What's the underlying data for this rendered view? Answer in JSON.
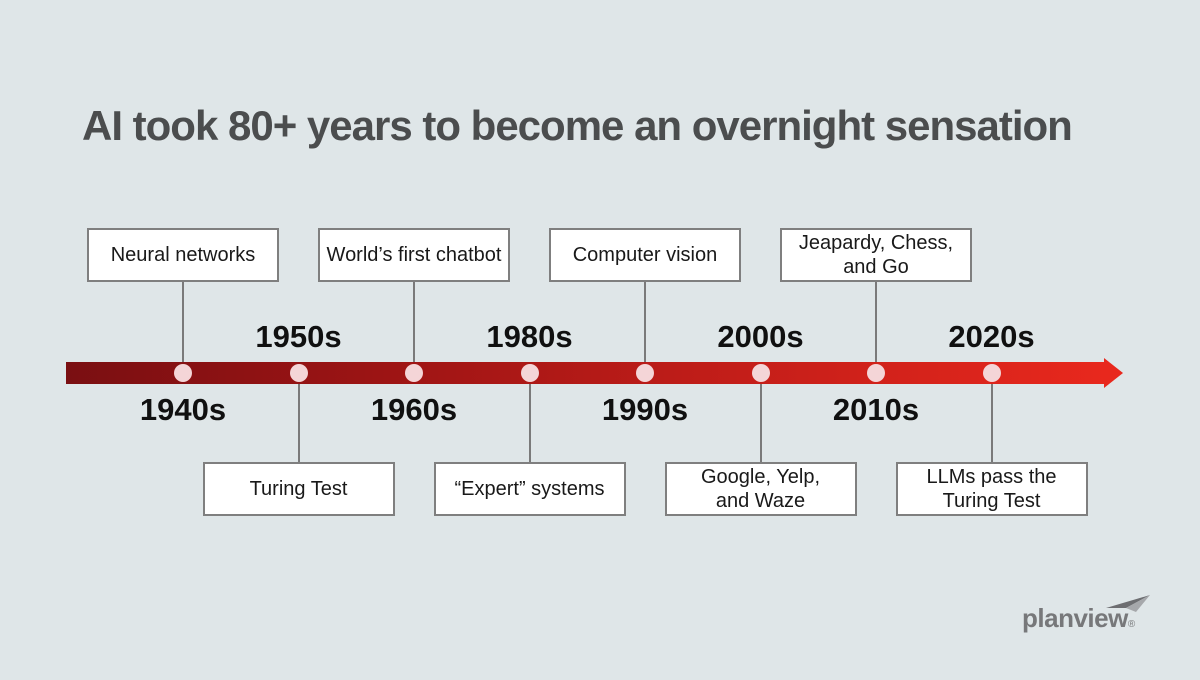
{
  "title": "AI took 80+ years to become an overnight sensation",
  "timeline": {
    "events": [
      {
        "decade": "1940s",
        "lines": [
          "Neural networks"
        ],
        "box_position": "above"
      },
      {
        "decade": "1950s",
        "lines": [
          "Turing Test"
        ],
        "box_position": "below"
      },
      {
        "decade": "1960s",
        "lines": [
          "World’s first chatbot"
        ],
        "box_position": "above"
      },
      {
        "decade": "1980s",
        "lines": [
          "“Expert” systems"
        ],
        "box_position": "below"
      },
      {
        "decade": "1990s",
        "lines": [
          "Computer vision"
        ],
        "box_position": "above"
      },
      {
        "decade": "2000s",
        "lines": [
          "Google, Yelp,",
          "and Waze"
        ],
        "box_position": "below"
      },
      {
        "decade": "2010s",
        "lines": [
          "Jeapardy, Chess,",
          "and Go"
        ],
        "box_position": "above"
      },
      {
        "decade": "2020s",
        "lines": [
          "LLMs pass the",
          "Turing Test"
        ],
        "box_position": "below"
      }
    ]
  },
  "logo": {
    "wordmark": "planview",
    "registered_mark": "®"
  },
  "colors": {
    "background": "#dfe6e8",
    "bar_gradient_start": "#7a0f12",
    "bar_gradient_end": "#e8281d",
    "timeline_dot": "#f4d5d7",
    "title_text": "#4b4d4e",
    "box_border": "#7f7f7f",
    "decade_text": "#101010",
    "logo_gray": "#77787a",
    "logo_arrow_dark": "#6d6e71",
    "logo_arrow_light": "#a6a8ab"
  }
}
